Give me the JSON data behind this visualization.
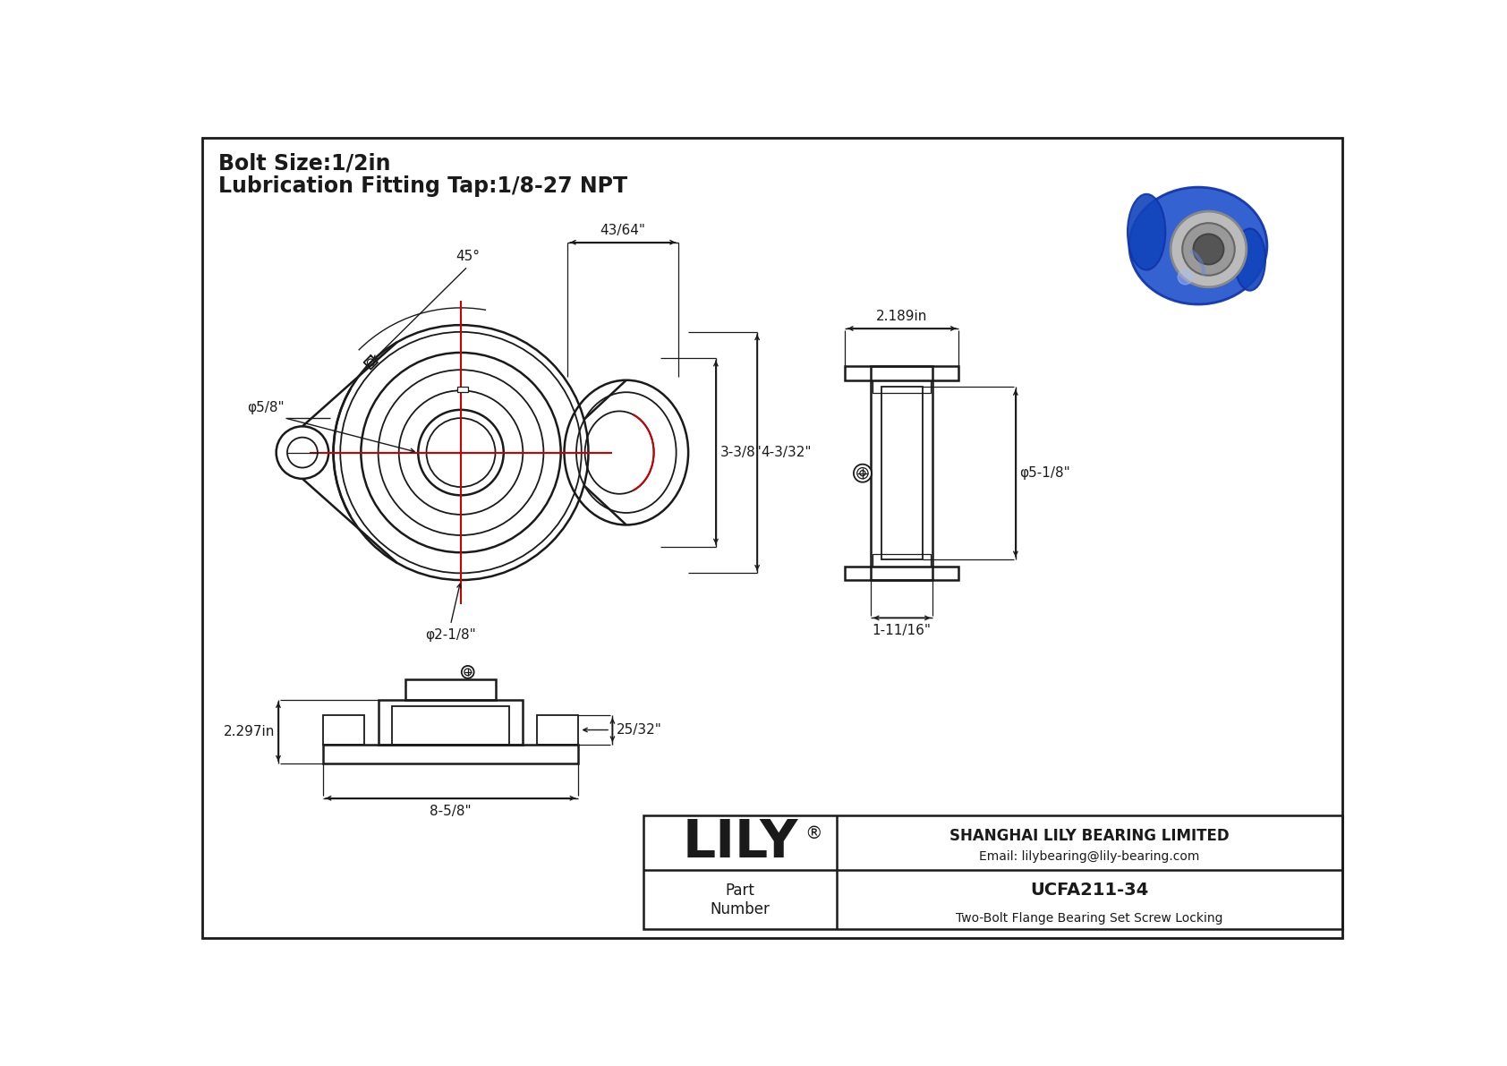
{
  "background_color": "#ffffff",
  "line_color": "#1a1a1a",
  "red_color": "#cc0000",
  "title_line1": "Bolt Size:1/2in",
  "title_line2": "Lubrication Fitting Tap:1/8-27 NPT",
  "lily_text": "LILY",
  "company_line1": "SHANGHAI LILY BEARING LIMITED",
  "company_line2": "Email: lilybearing@lily-bearing.com",
  "part_label": "Part\nNumber",
  "part_number": "UCFA211-34",
  "part_desc": "Two-Bolt Flange Bearing Set Screw Locking",
  "dim_45": "45°",
  "dim_43_64": "43/64\"",
  "dim_3_38": "3-3/8\"",
  "dim_4_332": "4-3/32\"",
  "dim_phi_58": "φ5/8\"",
  "dim_phi_218": "φ2-1/8\"",
  "dim_2189": "2.189in",
  "dim_phi_518": "φ5-1/8\"",
  "dim_1_1116": "1-11/16\"",
  "dim_2297": "2.297in",
  "dim_25_32": "25/32\"",
  "dim_8_58": "8-5/8\""
}
